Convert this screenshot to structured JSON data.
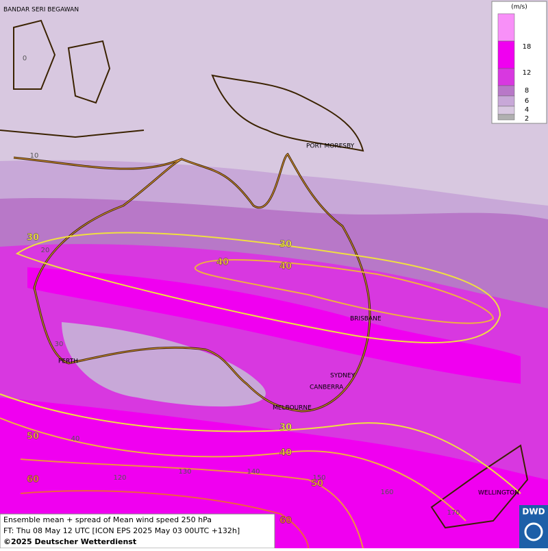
{
  "title": "Ensemble mean + spread of Mean wind speed 250 hPa",
  "forecast_time": "FT: Thu 08 May 12 UTC [ICON EPS 2025 May 03 00UTC +132h]",
  "copyright": "©2025 Deutscher Wetterdienst",
  "logo": "DWD",
  "legend": {
    "unit": "(m/s)",
    "labels": [
      "18",
      "12",
      "8",
      "6",
      "4",
      "2"
    ],
    "colors": [
      "#f890f8",
      "#f000f0",
      "#d838e0",
      "#b878c8",
      "#c8a8d8",
      "#d8c8e0",
      "#b0b0b0"
    ]
  },
  "cities": [
    "BANDAR SERI BEGAWAN",
    "PORT MORESBY",
    "BRISBANE",
    "PERTH",
    "SYDNEY",
    "CANBERRA",
    "MELBOURNE",
    "WELLINGTON"
  ],
  "latitude_labels": [
    "0",
    "10",
    "20",
    "30",
    "40"
  ],
  "longitude_labels": [
    "120",
    "130",
    "140",
    "150",
    "160",
    "170"
  ],
  "contour_labels": [
    "30",
    "30",
    "40",
    "40",
    "30",
    "40",
    "50",
    "50",
    "60",
    "60"
  ]
}
